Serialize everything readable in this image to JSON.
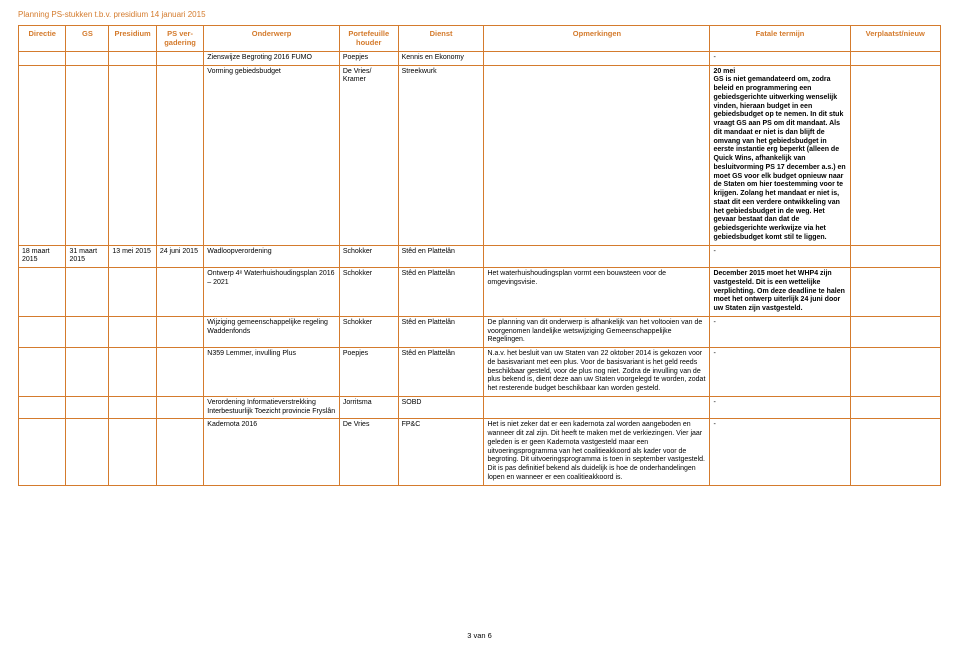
{
  "docTitle": "Planning PS-stukken t.b.v. presidium 14 januari 2015",
  "pageNum": "3 van 6",
  "headers": {
    "directie": "Directie",
    "gs": "GS",
    "presidium": "Presidium",
    "psver": "PS ver-gadering",
    "onderwerp": "Onderwerp",
    "portef": "Portefeuille houder",
    "dienst": "Dienst",
    "opm": "Opmerkingen",
    "fatale": "Fatale termijn",
    "verpl": "Verplaatst/nieuw"
  },
  "rows": [
    {
      "directie": "",
      "gs": "",
      "presidium": "",
      "psver": "",
      "onderwerp": "Zienswijze Begroting 2016 FUMO",
      "portef": "Poepjes",
      "dienst": "Kennis en Ekonomy",
      "opm": "",
      "fatale": "-",
      "verpl": ""
    },
    {
      "directie": "",
      "gs": "",
      "presidium": "",
      "psver": "",
      "onderwerp": "Vorming gebiedsbudget",
      "portef": "De Vries/ Kramer",
      "dienst": "Streekwurk",
      "opm": "",
      "fatale": "20 mei\nGS is niet gemandateerd om, zodra beleid en programmering een gebiedsgerichte uitwerking wenselijk vinden, hieraan budget in een gebiedsbudget op te nemen. In dit stuk vraagt GS aan PS om dit mandaat. Als dit mandaat er niet is dan blijft de omvang van het gebiedsbudget in eerste instantie erg beperkt (alleen de Quick Wins, afhankelijk van besluitvorming PS 17 december a.s.) en moet GS voor elk budget opnieuw naar de Staten om hier toestemming voor te krijgen. Zolang het mandaat er niet is, staat dit een verdere ontwikkeling van het gebiedsbudget in de weg. Het gevaar bestaat dan dat de gebiedsgerichte werkwijze via het gebiedsbudget komt stil te liggen.",
      "verpl": ""
    },
    {
      "directie": "18 maart 2015",
      "gs": "31 maart 2015",
      "presidium": "13 mei 2015",
      "psver": "24 juni 2015",
      "onderwerp": "Wadloopverordening",
      "portef": "Schokker",
      "dienst": "Stêd en Plattelân",
      "opm": "",
      "fatale": "-",
      "verpl": ""
    },
    {
      "directie": "",
      "gs": "",
      "presidium": "",
      "psver": "",
      "onderwerp": "Ontwerp 4ᵉ Waterhuishoudingsplan 2016 – 2021",
      "portef": "Schokker",
      "dienst": "Stêd en Plattelân",
      "opm": "Het waterhuishoudingsplan vormt een bouwsteen voor de omgevingsvisie.",
      "fatale": "December 2015 moet het WHP4 zijn vastgesteld. Dit is een wettelijke verplichting. Om deze deadline te halen moet het ontwerp uiterlijk 24 juni door uw Staten zijn vastgesteld.",
      "verpl": ""
    },
    {
      "directie": "",
      "gs": "",
      "presidium": "",
      "psver": "",
      "onderwerp": "Wijziging gemeenschappelijke regeling Waddenfonds",
      "portef": "Schokker",
      "dienst": "Stêd en Plattelân",
      "opm": "De planning van dit onderwerp is afhankelijk van het voltooien van de voorgenomen landelijke wetswijziging Gemeenschappelijke Regelingen.",
      "fatale": "-",
      "verpl": ""
    },
    {
      "directie": "",
      "gs": "",
      "presidium": "",
      "psver": "",
      "onderwerp": "N359 Lemmer, invulling Plus",
      "portef": "Poepjes",
      "dienst": "Stêd en Plattelân",
      "opm": "N.a.v. het besluit van uw Staten van 22 oktober 2014 is gekozen voor de basisvariant met een plus. Voor de basisvariant is het geld reeds beschikbaar gesteld, voor de plus nog niet. Zodra de invulling van de plus bekend is, dient deze aan uw Staten voorgelegd te worden, zodat het resterende budget beschikbaar kan worden gesteld.",
      "fatale": "-",
      "verpl": ""
    },
    {
      "directie": "",
      "gs": "",
      "presidium": "",
      "psver": "",
      "onderwerp": "Verordening Informatieverstrekking Interbestuurlijk Toezicht provincie Fryslân",
      "portef": "Jorritsma",
      "dienst": "SOBD",
      "opm": "",
      "fatale": "-",
      "verpl": ""
    },
    {
      "directie": "",
      "gs": "",
      "presidium": "",
      "psver": "",
      "onderwerp": "Kadernota 2016",
      "portef": "De Vries",
      "dienst": "FP&C",
      "opm": "Het is niet zeker dat er een kadernota zal worden aangeboden en wanneer dit zal zijn. Dit heeft te maken met de verkiezingen. Vier jaar geleden is er geen Kadernota vastgesteld maar een uitvoeringsprogramma van het coalitieakkoord als kader voor de begroting. Dit uitvoeringsprogramma is toen in september vastgesteld. Dit is pas definitief bekend als duidelijk is hoe de onderhandelingen lopen en wanneer er een coalitieakkoord is.",
      "fatale": "-",
      "verpl": ""
    }
  ]
}
